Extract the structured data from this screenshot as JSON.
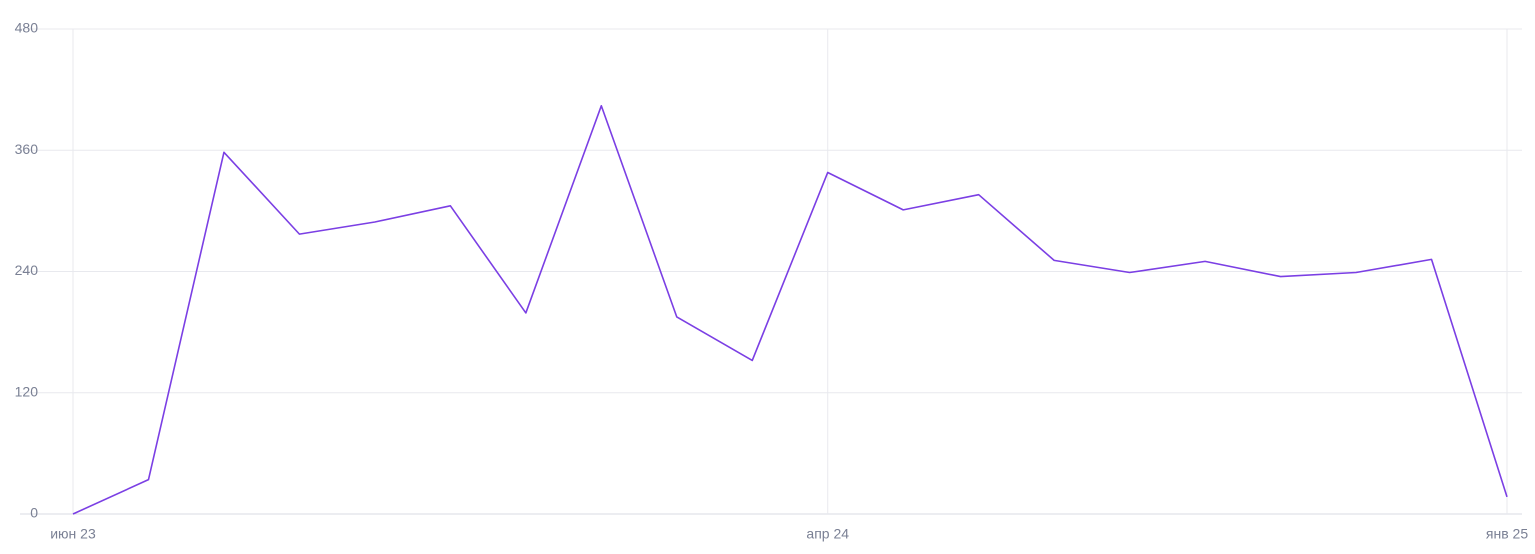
{
  "chart_data": {
    "type": "line",
    "categories": [
      "июн 23",
      null,
      null,
      null,
      null,
      null,
      null,
      null,
      null,
      null,
      "апр 24",
      null,
      null,
      null,
      null,
      null,
      null,
      null,
      null,
      "янв 25"
    ],
    "series": [
      {
        "color": "#7b3fe4",
        "values": [
          0,
          34,
          358,
          277,
          289,
          305,
          199,
          404,
          195,
          152,
          338,
          301,
          316,
          251,
          239,
          250,
          235,
          239,
          252,
          17
        ]
      }
    ],
    "ylim": [
      0,
      480
    ],
    "yticks": [
      0,
      120,
      240,
      360,
      480
    ],
    "grid": true
  }
}
